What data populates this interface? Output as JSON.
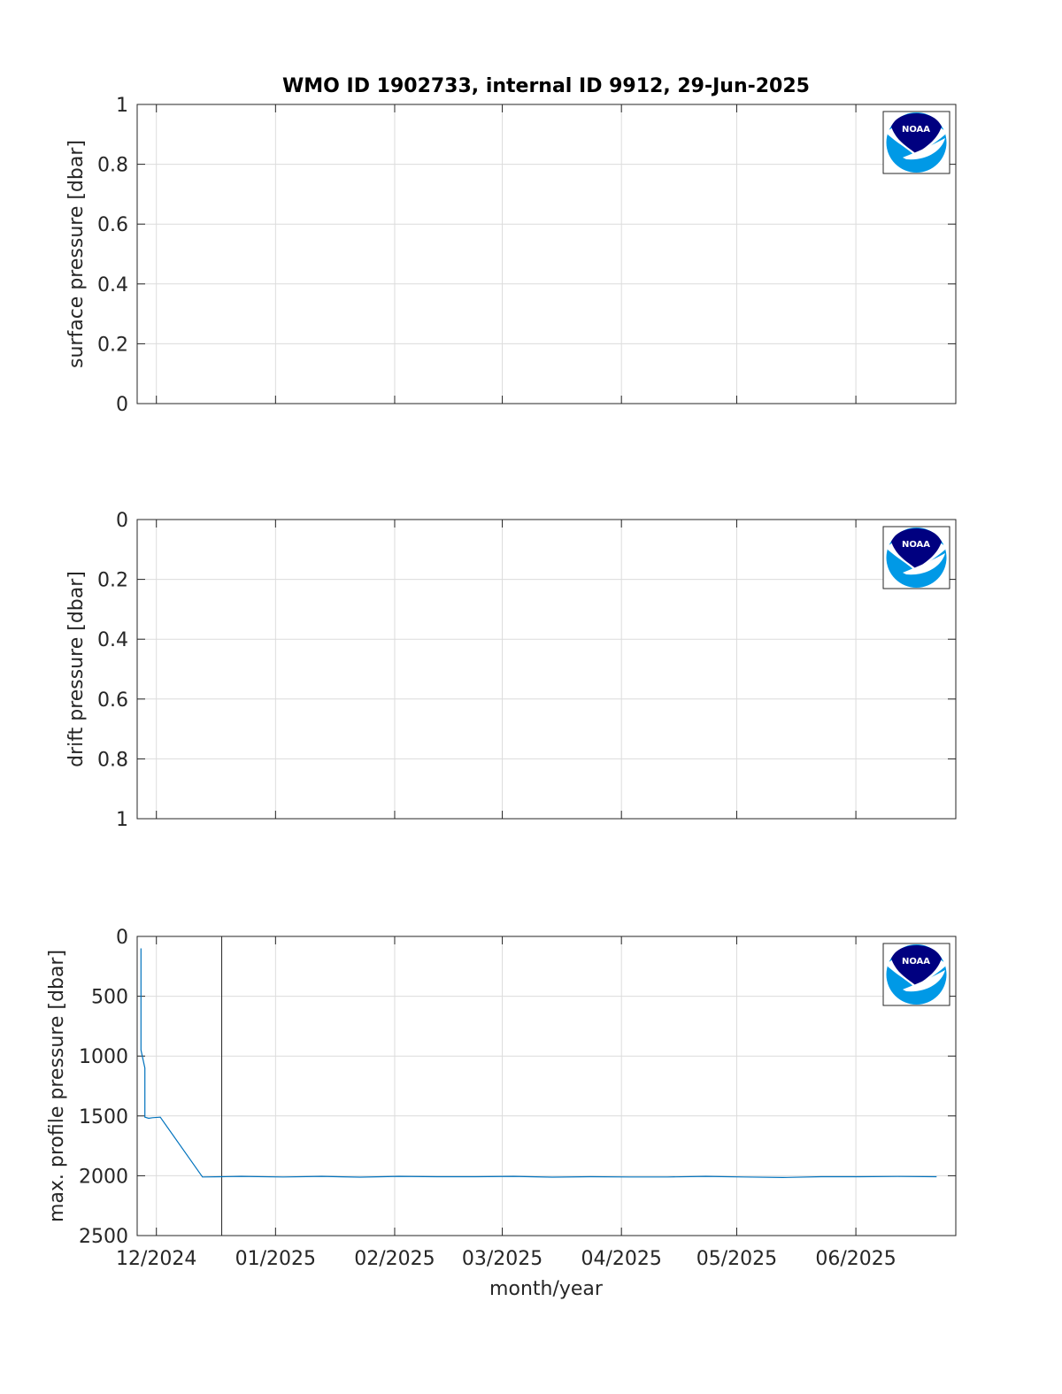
{
  "figure": {
    "title": "WMO ID 1902733, internal ID 9912, 29-Jun-2025",
    "xlabel": "month/year",
    "x_tick_labels": [
      "12/2024",
      "01/2025",
      "02/2025",
      "03/2025",
      "04/2025",
      "05/2025",
      "06/2025"
    ],
    "logo_text": "NOAA"
  },
  "chart_data": [
    {
      "type": "line",
      "ylabel": "surface pressure [dbar]",
      "ylim": [
        0,
        1
      ],
      "y_reversed": false,
      "y_ticks": [
        0,
        0.2,
        0.4,
        0.6,
        0.8,
        1
      ],
      "y_tick_labels": [
        "0",
        "0.2",
        "0.4",
        "0.6",
        "0.8",
        "1"
      ],
      "xlim": [
        "2024-11-26",
        "2025-06-27"
      ],
      "x_ticks": [
        "2024-12-01",
        "2025-01-01",
        "2025-02-01",
        "2025-03-01",
        "2025-04-01",
        "2025-05-01",
        "2025-06-01"
      ],
      "grid": true,
      "series": []
    },
    {
      "type": "line",
      "ylabel": "drift pressure [dbar]",
      "ylim": [
        0,
        1
      ],
      "y_reversed": true,
      "y_ticks": [
        0,
        0.2,
        0.4,
        0.6,
        0.8,
        1
      ],
      "y_tick_labels": [
        "0",
        "0.2",
        "0.4",
        "0.6",
        "0.8",
        "1"
      ],
      "xlim": [
        "2024-11-26",
        "2025-06-27"
      ],
      "x_ticks": [
        "2024-12-01",
        "2025-01-01",
        "2025-02-01",
        "2025-03-01",
        "2025-04-01",
        "2025-05-01",
        "2025-06-01"
      ],
      "grid": true,
      "series": []
    },
    {
      "type": "line",
      "ylabel": "max. profile pressure [dbar]",
      "ylim": [
        0,
        2500
      ],
      "y_reversed": true,
      "y_ticks": [
        0,
        500,
        1000,
        1500,
        2000,
        2500
      ],
      "y_tick_labels": [
        "0",
        "500",
        "1000",
        "1500",
        "2000",
        "2500"
      ],
      "xlim": [
        "2024-11-26",
        "2025-06-27"
      ],
      "x_ticks": [
        "2024-12-01",
        "2025-01-01",
        "2025-02-01",
        "2025-03-01",
        "2025-04-01",
        "2025-05-01",
        "2025-06-01"
      ],
      "grid": true,
      "vline": "2024-12-18",
      "series": [
        {
          "color": "#0072bd",
          "x": [
            "2024-11-27",
            "2024-11-27",
            "2024-11-28",
            "2024-11-28",
            "2024-11-29",
            "2024-11-30",
            "2024-12-02",
            "2024-12-13",
            "2024-12-18",
            "2024-12-23",
            "2025-01-03",
            "2025-01-13",
            "2025-01-23",
            "2025-02-02",
            "2025-02-12",
            "2025-02-22",
            "2025-03-04",
            "2025-03-14",
            "2025-03-24",
            "2025-04-03",
            "2025-04-13",
            "2025-04-23",
            "2025-05-03",
            "2025-05-13",
            "2025-05-23",
            "2025-06-02",
            "2025-06-12",
            "2025-06-22"
          ],
          "values": [
            100,
            950,
            1100,
            1510,
            1520,
            1515,
            1510,
            2010,
            2008,
            2005,
            2010,
            2005,
            2012,
            2005,
            2008,
            2008,
            2005,
            2012,
            2008,
            2010,
            2010,
            2005,
            2010,
            2015,
            2008,
            2008,
            2006,
            2008
          ]
        }
      ]
    }
  ]
}
